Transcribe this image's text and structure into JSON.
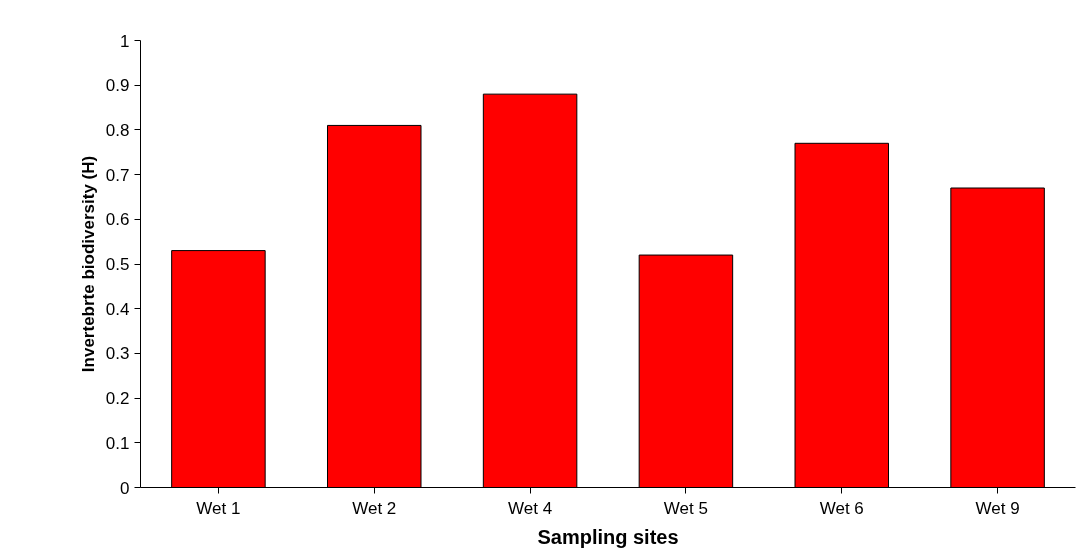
{
  "chart_data": {
    "type": "bar",
    "xlabel": "Sampling sites",
    "ylabel": "Invertebrte biodiversity (H)",
    "categories": [
      "Wet 1",
      "Wet 2",
      "Wet 4",
      "Wet 5",
      "Wet 6",
      "Wet 9"
    ],
    "values": [
      0.53,
      0.81,
      0.88,
      0.52,
      0.77,
      0.67
    ],
    "color": "#ff0000",
    "ylim": [
      0,
      1
    ],
    "yticks": [
      0,
      {
        "value": 0.1,
        "label": "0.1"
      },
      {
        "value": 0.2,
        "label": "0.2"
      },
      {
        "value": 0.3,
        "label": "0.3"
      },
      {
        "value": 0.4,
        "label": "0.4"
      },
      {
        "value": 0.5,
        "label": "0.5"
      },
      {
        "value": 0.6,
        "label": "0.6"
      },
      {
        "value": 0.7,
        "label": "0.7"
      },
      {
        "value": 0.8,
        "label": "0.8"
      },
      {
        "value": 0.9,
        "label": "0.9"
      },
      1
    ],
    "grid": false
  }
}
